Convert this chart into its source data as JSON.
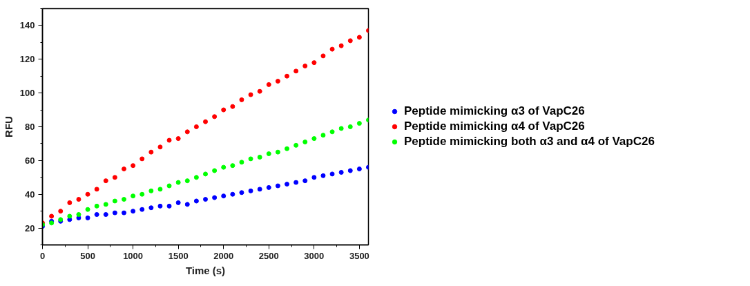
{
  "chart_data": {
    "type": "scatter",
    "xlabel": "Time (s)",
    "ylabel": "RFU",
    "x": [
      0,
      100,
      200,
      300,
      400,
      500,
      600,
      700,
      800,
      900,
      1000,
      1100,
      1200,
      1300,
      1400,
      1500,
      1600,
      1700,
      1800,
      1900,
      2000,
      2100,
      2200,
      2300,
      2400,
      2500,
      2600,
      2700,
      2800,
      2900,
      3000,
      3100,
      3200,
      3300,
      3400,
      3500,
      3600
    ],
    "series": [
      {
        "name": "Peptide mimicking α3 of VapC26",
        "color": "#0000ff",
        "values": [
          21,
          24,
          24,
          25,
          26,
          26,
          28,
          28,
          29,
          29,
          30,
          31,
          32,
          33,
          33,
          35,
          34,
          36,
          37,
          38,
          39,
          40,
          41,
          42,
          43,
          44,
          45,
          46,
          47,
          48,
          50,
          51,
          52,
          53,
          54,
          55,
          56
        ]
      },
      {
        "name": "Peptide mimicking α4 of VapC26",
        "color": "#ff0000",
        "values": [
          23,
          27,
          30,
          35,
          37,
          40,
          43,
          48,
          50,
          55,
          57,
          61,
          65,
          68,
          72,
          73,
          77,
          80,
          83,
          86,
          90,
          92,
          96,
          99,
          101,
          105,
          107,
          110,
          113,
          116,
          118,
          122,
          126,
          128,
          131,
          133,
          137
        ]
      },
      {
        "name": "Peptide mimicking both α3 and α4 of VapC26",
        "color": "#00ff00",
        "values": [
          22,
          23,
          25,
          27,
          28,
          31,
          33,
          34,
          36,
          37,
          39,
          40,
          42,
          43,
          45,
          47,
          48,
          50,
          52,
          54,
          56,
          57,
          59,
          61,
          62,
          64,
          65,
          67,
          69,
          71,
          73,
          75,
          77,
          79,
          80,
          82,
          84
        ]
      }
    ],
    "xlim": [
      0,
      3600
    ],
    "xticks": [
      0,
      500,
      1000,
      1500,
      2000,
      2500,
      3000,
      3500
    ],
    "ylim": [
      10,
      150
    ],
    "yticks": [
      20,
      40,
      60,
      80,
      100,
      120,
      140
    ],
    "grid": false,
    "legend": "right",
    "marker": "circle"
  }
}
